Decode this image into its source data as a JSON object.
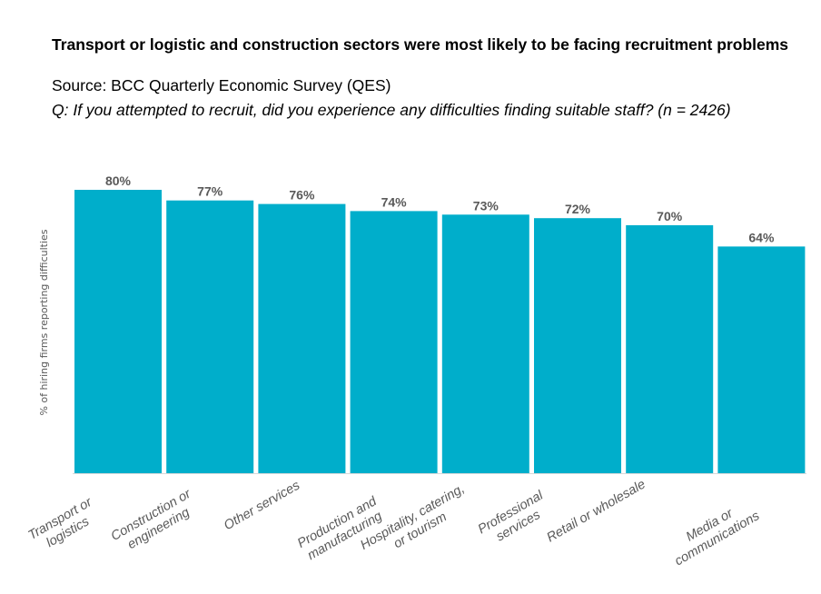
{
  "chart_data": {
    "type": "bar",
    "title": "Transport or logistic and construction sectors were most likely to be facing recruitment problems",
    "subtitle": "Source: BCC Quarterly Economic Survey (QES)",
    "question": "Q: If you attempted to recruit, did you experience any difficulties finding suitable staff? (n = 2426)",
    "ylabel": "% of hiring firms reporting difficulties",
    "xlabel": "",
    "ylim": [
      0,
      100
    ],
    "grid": false,
    "bar_color": "#00AECB",
    "categories": [
      [
        "Transport or",
        "logistics"
      ],
      [
        "Construction or",
        "engineering"
      ],
      [
        "Other services"
      ],
      [
        "Production and",
        "manufacturing"
      ],
      [
        "Hospitality, catering,",
        "or tourism"
      ],
      [
        "Professional",
        "services"
      ],
      [
        "Retail or wholesale"
      ],
      [
        "Media or",
        "communications"
      ]
    ],
    "values": [
      80,
      77,
      76,
      74,
      73,
      72,
      70,
      64
    ],
    "data_labels": [
      "80%",
      "77%",
      "76%",
      "74%",
      "73%",
      "72%",
      "70%",
      "64%"
    ]
  }
}
